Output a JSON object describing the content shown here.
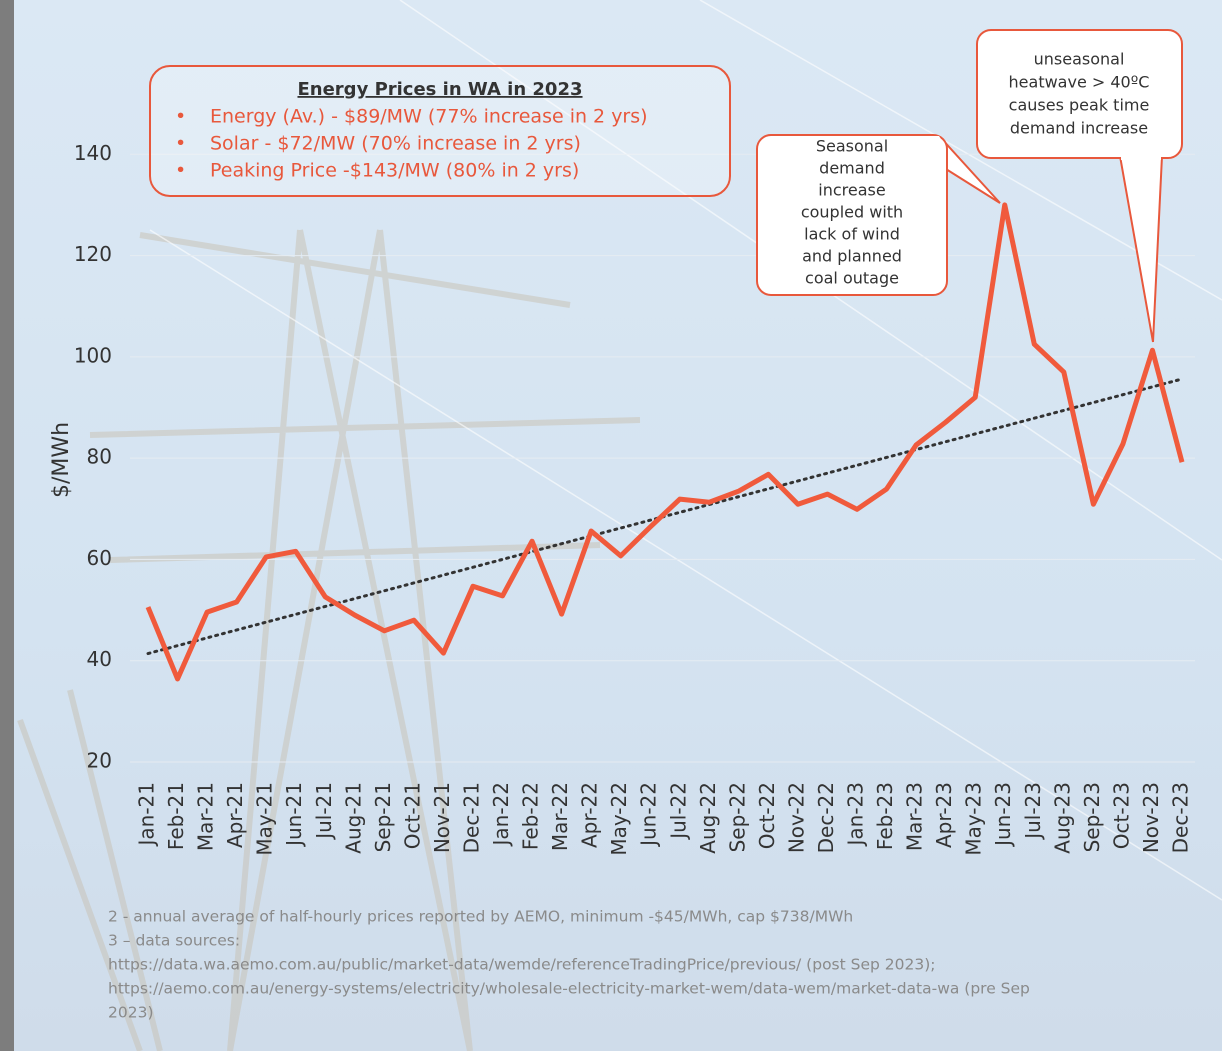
{
  "chart_data": {
    "type": "line",
    "y_label": "$/MWh",
    "categories": [
      "Jan-21",
      "Feb-21",
      "Mar-21",
      "Apr-21",
      "May-21",
      "Jun-21",
      "Jul-21",
      "Aug-21",
      "Sep-21",
      "Oct-21",
      "Nov-21",
      "Dec-21",
      "Jan-22",
      "Feb-22",
      "Mar-22",
      "Apr-22",
      "May-22",
      "Jun-22",
      "Jul-22",
      "Aug-22",
      "Sep-22",
      "Oct-22",
      "Nov-22",
      "Dec-22",
      "Jan-23",
      "Feb-23",
      "Mar-23",
      "Apr-23",
      "May-23",
      "Jun-23",
      "Jul-23",
      "Aug-23",
      "Sep-23",
      "Oct-23",
      "Nov-23",
      "Dec-23"
    ],
    "series": [
      {
        "color": "#f05a3c",
        "values": [
          50.6,
          36.4,
          49.6,
          51.6,
          60.5,
          61.6,
          52.6,
          49,
          45.9,
          48,
          41.5,
          54.7,
          52.8,
          63.6,
          49.2,
          65.6,
          60.7,
          66.4,
          71.9,
          71.3,
          73.5,
          76.8,
          70.9,
          72.9,
          69.9,
          73.9,
          82.6,
          87.1,
          92,
          130,
          102.5,
          97,
          70.9,
          82.8,
          101.3,
          79.2
        ]
      }
    ],
    "trendline": "linear",
    "trend_color": "#333333",
    "ylim": [
      20,
      160
    ],
    "yticks": [
      20,
      40,
      60,
      80,
      100,
      120,
      140
    ],
    "grid": true,
    "info_box": {
      "title": "Energy Prices in WA in 2023",
      "bullets": [
        "Energy (Av.) - $89/MW (77% increase in 2 yrs)",
        "Solar  - $72/MW (70% increase in 2 yrs)",
        "Peaking Price -$143/MW (80% in 2 yrs)"
      ]
    },
    "annotations": [
      {
        "lines": [
          "Seasonal",
          "demand",
          "increase",
          "coupled with",
          "lack of wind",
          "and planned",
          "coal outage"
        ]
      },
      {
        "lines": [
          "unseasonal",
          "heatwave > 40ºC",
          "causes peak time",
          "demand increase"
        ]
      }
    ],
    "footnotes": [
      "2 - annual average of half-hourly prices reported by AEMO, minimum -$45/MWh, cap $738/MWh",
      "3 – data sources:",
      "https://data.wa.aemo.com.au/public/market-data/wemde/referenceTradingPrice/previous/ (post Sep 2023);",
      "https://aemo.com.au/energy-systems/electricity/wholesale-electricity-market-wem/data-wem/market-data-wa (pre Sep",
      "2023)"
    ]
  }
}
